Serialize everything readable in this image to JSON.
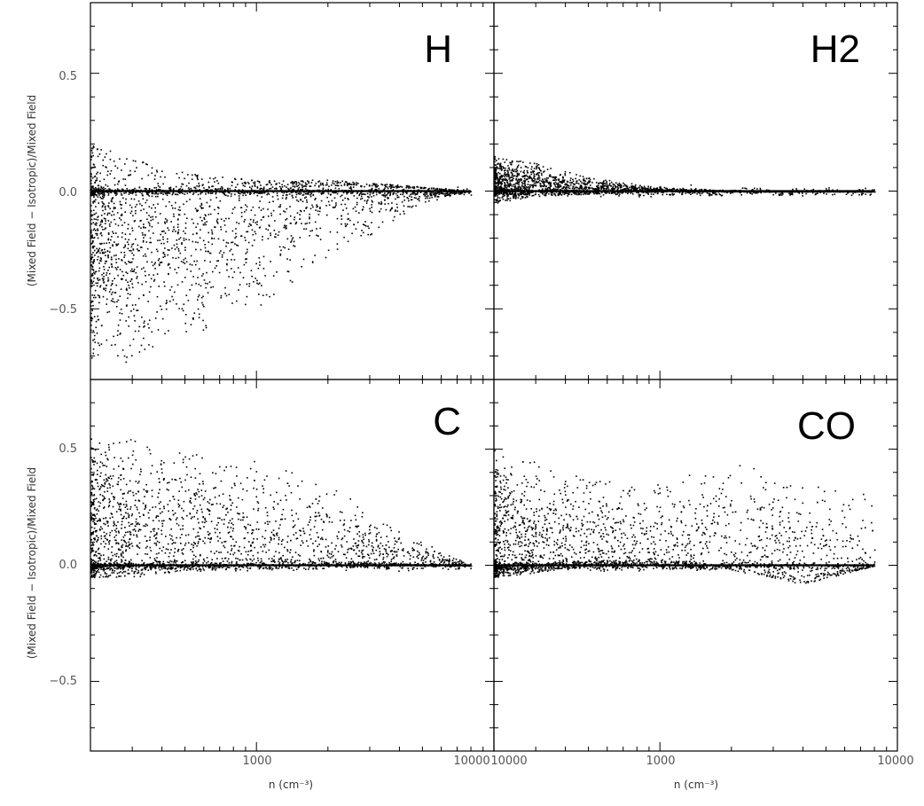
{
  "chart_data": [
    {
      "panel": "top-left",
      "type": "scatter",
      "title": "H",
      "xlabel": "",
      "ylabel": "(Mixed Field − Isotropic)/Mixed Field",
      "x_scale": "log",
      "xlim": [
        200,
        10000
      ],
      "ylim": [
        -0.8,
        0.8
      ],
      "x_ticks": [],
      "y_ticks": [
        "0.5",
        "0.0",
        "−0.5"
      ],
      "trend": [
        {
          "x": 200,
          "y_low": -0.75,
          "y_high": 0.2,
          "y_center": -0.22
        },
        {
          "x": 300,
          "y_low": -0.72,
          "y_high": 0.15,
          "y_center": -0.25
        },
        {
          "x": 500,
          "y_low": -0.65,
          "y_high": 0.08,
          "y_center": -0.2
        },
        {
          "x": 1000,
          "y_low": -0.5,
          "y_high": 0.05,
          "y_center": -0.1
        },
        {
          "x": 2000,
          "y_low": -0.3,
          "y_high": 0.05,
          "y_center": -0.03
        },
        {
          "x": 5000,
          "y_low": -0.05,
          "y_high": 0.02,
          "y_center": 0.0
        },
        {
          "x": 8000,
          "y_low": 0.0,
          "y_high": 0.0,
          "y_center": 0.0
        }
      ]
    },
    {
      "panel": "top-right",
      "type": "scatter",
      "title": "H2",
      "xlabel": "",
      "ylabel": "",
      "x_scale": "log",
      "xlim": [
        200,
        10000
      ],
      "ylim": [
        -0.8,
        0.8
      ],
      "x_ticks": [],
      "y_ticks": [],
      "trend": [
        {
          "x": 200,
          "y_low": -0.05,
          "y_high": 0.15,
          "y_center": 0.04
        },
        {
          "x": 300,
          "y_low": -0.02,
          "y_high": 0.12,
          "y_center": 0.04
        },
        {
          "x": 500,
          "y_low": -0.01,
          "y_high": 0.06,
          "y_center": 0.02
        },
        {
          "x": 1000,
          "y_low": 0.0,
          "y_high": 0.02,
          "y_center": 0.005
        },
        {
          "x": 2000,
          "y_low": 0.0,
          "y_high": 0.005,
          "y_center": 0.0
        },
        {
          "x": 8000,
          "y_low": 0.0,
          "y_high": 0.0,
          "y_center": 0.0
        }
      ]
    },
    {
      "panel": "bottom-left",
      "type": "scatter",
      "title": "C",
      "xlabel": "n (cm⁻³)",
      "ylabel": "(Mixed Field − Isotropic)/Mixed Field",
      "x_scale": "log",
      "xlim": [
        200,
        10000
      ],
      "ylim": [
        -0.8,
        0.8
      ],
      "x_ticks": [
        "1000",
        "10000"
      ],
      "y_ticks": [
        "0.5",
        "0.0",
        "−0.5"
      ],
      "trend": [
        {
          "x": 200,
          "y_low": -0.05,
          "y_high": 0.55,
          "y_center": 0.15
        },
        {
          "x": 300,
          "y_low": -0.05,
          "y_high": 0.55,
          "y_center": 0.15
        },
        {
          "x": 500,
          "y_low": -0.02,
          "y_high": 0.5,
          "y_center": 0.15
        },
        {
          "x": 1000,
          "y_low": 0.0,
          "y_high": 0.45,
          "y_center": 0.12
        },
        {
          "x": 2000,
          "y_low": 0.0,
          "y_high": 0.35,
          "y_center": 0.08
        },
        {
          "x": 4000,
          "y_low": 0.0,
          "y_high": 0.15,
          "y_center": 0.03
        },
        {
          "x": 8000,
          "y_low": 0.0,
          "y_high": 0.0,
          "y_center": 0.0
        }
      ]
    },
    {
      "panel": "bottom-right",
      "type": "scatter",
      "title": "CO",
      "xlabel": "n (cm⁻³)",
      "ylabel": "",
      "x_scale": "log",
      "xlim": [
        200,
        10000
      ],
      "ylim": [
        -0.8,
        0.8
      ],
      "x_ticks": [
        "10000",
        "1000",
        "10000"
      ],
      "y_ticks": [],
      "trend": [
        {
          "x": 200,
          "y_low": -0.05,
          "y_high": 0.5,
          "y_center": 0.1
        },
        {
          "x": 300,
          "y_low": -0.03,
          "y_high": 0.45,
          "y_center": 0.1
        },
        {
          "x": 500,
          "y_low": 0.0,
          "y_high": 0.38,
          "y_center": 0.08
        },
        {
          "x": 1000,
          "y_low": 0.0,
          "y_high": 0.35,
          "y_center": 0.08
        },
        {
          "x": 2000,
          "y_low": -0.02,
          "y_high": 0.45,
          "y_center": 0.08
        },
        {
          "x": 4000,
          "y_low": -0.08,
          "y_high": 0.35,
          "y_center": 0.05
        },
        {
          "x": 8000,
          "y_low": 0.0,
          "y_high": 0.3,
          "y_center": 0.0
        }
      ]
    }
  ]
}
